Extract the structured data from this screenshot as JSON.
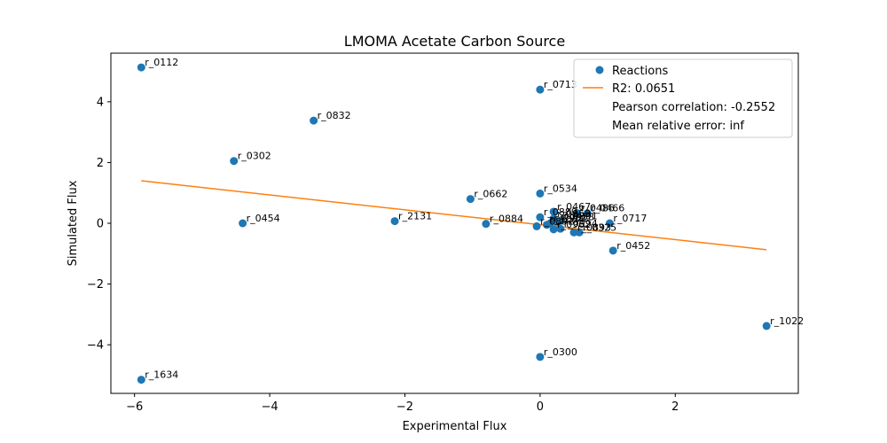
{
  "chart_data": {
    "type": "scatter",
    "title": "LMOMA Acetate Carbon Source",
    "xlabel": "Experimental Flux",
    "ylabel": "Simulated Flux",
    "xlim": [
      -6.35,
      3.82
    ],
    "ylim": [
      -5.6,
      5.6
    ],
    "xticks": [
      -6,
      -4,
      -2,
      0,
      2
    ],
    "yticks": [
      -4,
      -2,
      0,
      2,
      4
    ],
    "grid": false,
    "legend_position": "top-right",
    "colors": {
      "points": "#1f77b4",
      "fit_line": "#ff7f0e",
      "axes": "#000000"
    },
    "legend": {
      "points_label": "Reactions",
      "line_label": "R2: 0.0651",
      "pearson_text": "Pearson correlation: -0.2552",
      "mre_text": "Mean relative error: inf"
    },
    "fit_line": {
      "x": [
        -5.9,
        3.35
      ],
      "y": [
        1.4,
        -0.87
      ]
    },
    "points": [
      {
        "label": "r_0112",
        "x": -5.9,
        "y": 5.13
      },
      {
        "label": "r_1634",
        "x": -5.9,
        "y": -5.15
      },
      {
        "label": "r_0302",
        "x": -4.53,
        "y": 2.05
      },
      {
        "label": "r_0454",
        "x": -4.4,
        "y": 0.0
      },
      {
        "label": "r_0832",
        "x": -3.35,
        "y": 3.38
      },
      {
        "label": "r_2131",
        "x": -2.15,
        "y": 0.07
      },
      {
        "label": "r_0662",
        "x": -1.03,
        "y": 0.8
      },
      {
        "label": "r_0884",
        "x": -0.8,
        "y": -0.02
      },
      {
        "label": "r_0713",
        "x": 0.0,
        "y": 4.4
      },
      {
        "label": "r_0534",
        "x": 0.0,
        "y": 0.98
      },
      {
        "label": "r_0300",
        "x": 0.0,
        "y": -4.4
      },
      {
        "label": "r_0467",
        "x": 0.2,
        "y": 0.38
      },
      {
        "label": "r_0486",
        "x": 0.55,
        "y": 0.33
      },
      {
        "label": "r_0466",
        "x": 0.7,
        "y": 0.33
      },
      {
        "label": "r_0717",
        "x": 1.03,
        "y": 0.0
      },
      {
        "label": "r_0452",
        "x": 1.08,
        "y": -0.9
      },
      {
        "label": "r_1022",
        "x": 3.35,
        "y": -3.38
      },
      {
        "label": "r_0889",
        "x": 0.0,
        "y": 0.2
      },
      {
        "label": "r_0959",
        "x": 0.2,
        "y": 0.15
      },
      {
        "label": "r_0891",
        "x": 0.3,
        "y": 0.08
      },
      {
        "label": "r_0958",
        "x": 0.25,
        "y": 0.05
      },
      {
        "label": "r_0961",
        "x": 0.15,
        "y": 0.0
      },
      {
        "label": "r_1054",
        "x": 0.1,
        "y": -0.05
      },
      {
        "label": "r_0892",
        "x": -0.05,
        "y": -0.1
      },
      {
        "label": "r_0962",
        "x": 0.2,
        "y": -0.2
      },
      {
        "label": "r_0994",
        "x": 0.3,
        "y": -0.18
      },
      {
        "label": "r_0893",
        "x": 0.5,
        "y": -0.3
      },
      {
        "label": "r_0325",
        "x": 0.58,
        "y": -0.3
      }
    ]
  }
}
